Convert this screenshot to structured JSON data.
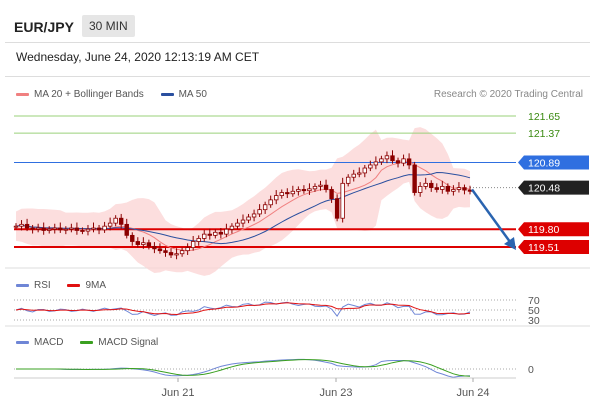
{
  "header": {
    "pair": "EUR/JPY",
    "timeframe": "30 MIN",
    "datetime": "Wednesday, June 24, 2020 12:13:19 AM CET"
  },
  "legend_main": [
    {
      "label": "MA 20 + Bollinger Bands",
      "color": "#f08080"
    },
    {
      "label": "MA 50",
      "color": "#2a4f9f"
    }
  ],
  "credit": "Research © 2020 Trading Central",
  "legend_rsi": [
    {
      "label": "RSI",
      "color": "#6f86d6"
    },
    {
      "label": "9MA",
      "color": "#e01010"
    }
  ],
  "legend_macd": [
    {
      "label": "MACD",
      "color": "#6f86d6"
    },
    {
      "label": "MACD Signal",
      "color": "#3aa020"
    }
  ],
  "colors": {
    "green_level": "#9ad07a",
    "blue_level": "#2f6fe0",
    "red_level": "#dd0000",
    "candle": "#8b0000",
    "band_fill": "#fbd6d6",
    "arrow": "#2a64b0"
  },
  "chart_data": {
    "type": "candlestick",
    "x_ticks": [
      "Jun 21",
      "Jun 23",
      "Jun 24"
    ],
    "levels": [
      {
        "value": 121.65,
        "label": "121.65",
        "style": "green-line"
      },
      {
        "value": 121.37,
        "label": "121.37",
        "style": "green-line"
      },
      {
        "value": 120.89,
        "label": "120.89",
        "style": "blue-box"
      },
      {
        "value": 120.48,
        "label": "120.48",
        "style": "current-price"
      },
      {
        "value": 119.8,
        "label": "119.80",
        "style": "red-box"
      },
      {
        "value": 119.51,
        "label": "119.51",
        "style": "red-box"
      }
    ],
    "forecast_arrow": {
      "from_price": 120.45,
      "to_price": 119.51,
      "direction": "down"
    },
    "price_series": [
      119.85,
      119.88,
      119.82,
      119.8,
      119.82,
      119.78,
      119.8,
      119.82,
      119.79,
      119.8,
      119.82,
      119.78,
      119.77,
      119.8,
      119.82,
      119.79,
      119.85,
      119.9,
      119.98,
      119.88,
      119.7,
      119.6,
      119.55,
      119.58,
      119.52,
      119.48,
      119.45,
      119.42,
      119.38,
      119.4,
      119.45,
      119.5,
      119.6,
      119.65,
      119.72,
      119.7,
      119.75,
      119.72,
      119.8,
      119.85,
      119.9,
      119.95,
      120.0,
      120.05,
      120.12,
      120.2,
      120.28,
      120.35,
      120.4,
      120.38,
      120.42,
      120.45,
      120.43,
      120.46,
      120.5,
      120.52,
      120.45,
      120.3,
      119.98,
      120.55,
      120.65,
      120.7,
      120.72,
      120.8,
      120.85,
      120.9,
      120.95,
      121.0,
      120.92,
      120.88,
      120.95,
      120.85,
      120.4,
      120.5,
      120.55,
      120.48,
      120.45,
      120.5,
      120.42,
      120.45,
      120.48,
      120.44,
      120.42
    ],
    "rsi": {
      "levels": [
        70,
        50,
        30
      ],
      "labels": [
        "70",
        "50",
        "30"
      ]
    },
    "macd": {
      "levels": [
        0
      ],
      "labels": [
        "0"
      ]
    }
  }
}
